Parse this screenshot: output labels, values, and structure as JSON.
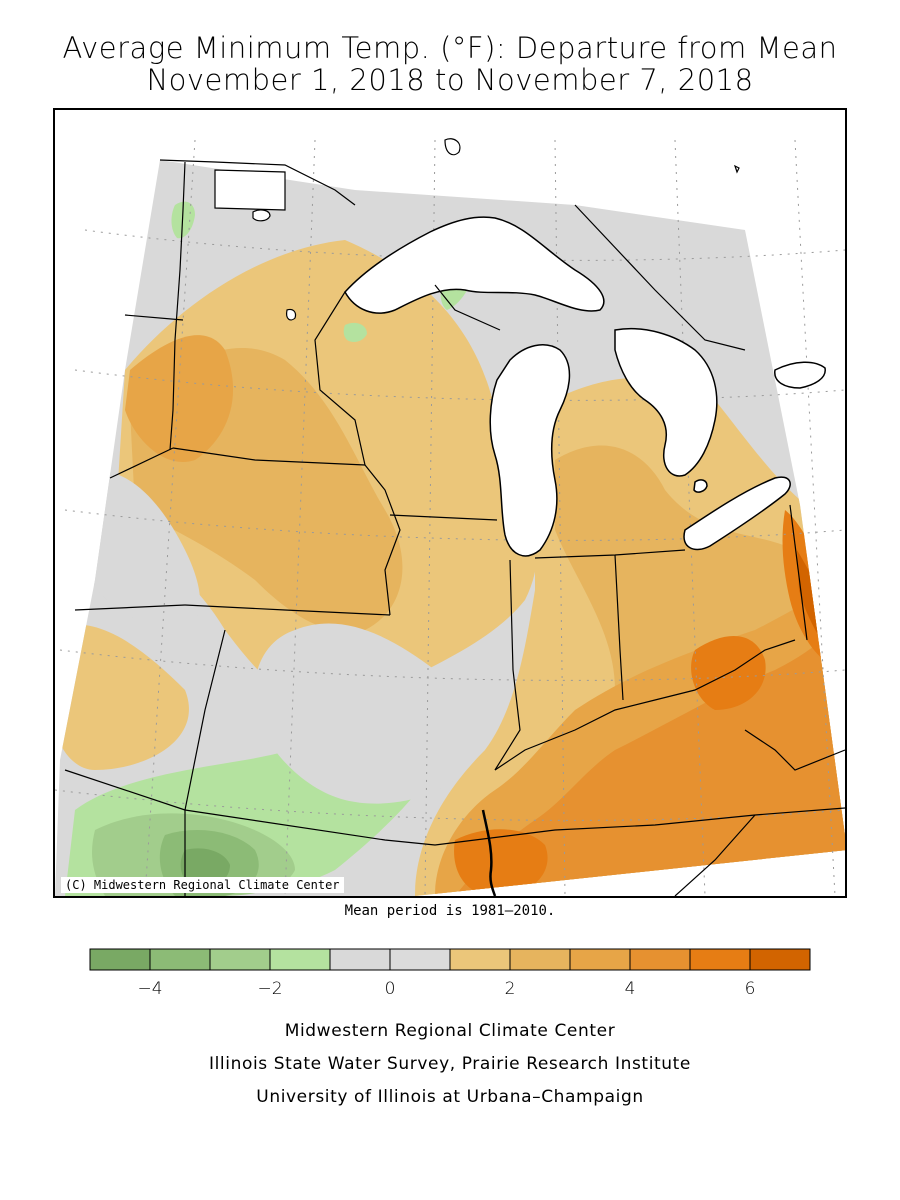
{
  "title": {
    "line1": "Average Minimum Temp. (°F): Departure from Mean",
    "line2": "November 1, 2018 to November 7, 2018"
  },
  "map": {
    "copyright": "(C) Midwestern Regional Climate Center",
    "background_color": "#d9d9d9"
  },
  "mean_period": "Mean period is 1981–2010.",
  "legend": {
    "colors": [
      "#79a964",
      "#8cbb76",
      "#a2cd8c",
      "#b4e29f",
      "#d9d9d9",
      "#dbdbdb",
      "#ebc67a",
      "#e6b45e",
      "#e7a547",
      "#e69130",
      "#e67d14",
      "#d26400"
    ],
    "ticks": [
      {
        "value": -4,
        "label": "−4"
      },
      {
        "value": -2,
        "label": "−2"
      },
      {
        "value": 0,
        "label": "0"
      },
      {
        "value": 2,
        "label": "2"
      },
      {
        "value": 4,
        "label": "4"
      },
      {
        "value": 6,
        "label": "6"
      }
    ],
    "range": [
      -5,
      7
    ]
  },
  "credits": {
    "line1": "Midwestern Regional Climate Center",
    "line2": "Illinois State Water Survey, Prairie Research Institute",
    "line3": "University of Illinois at Urbana–Champaign"
  }
}
